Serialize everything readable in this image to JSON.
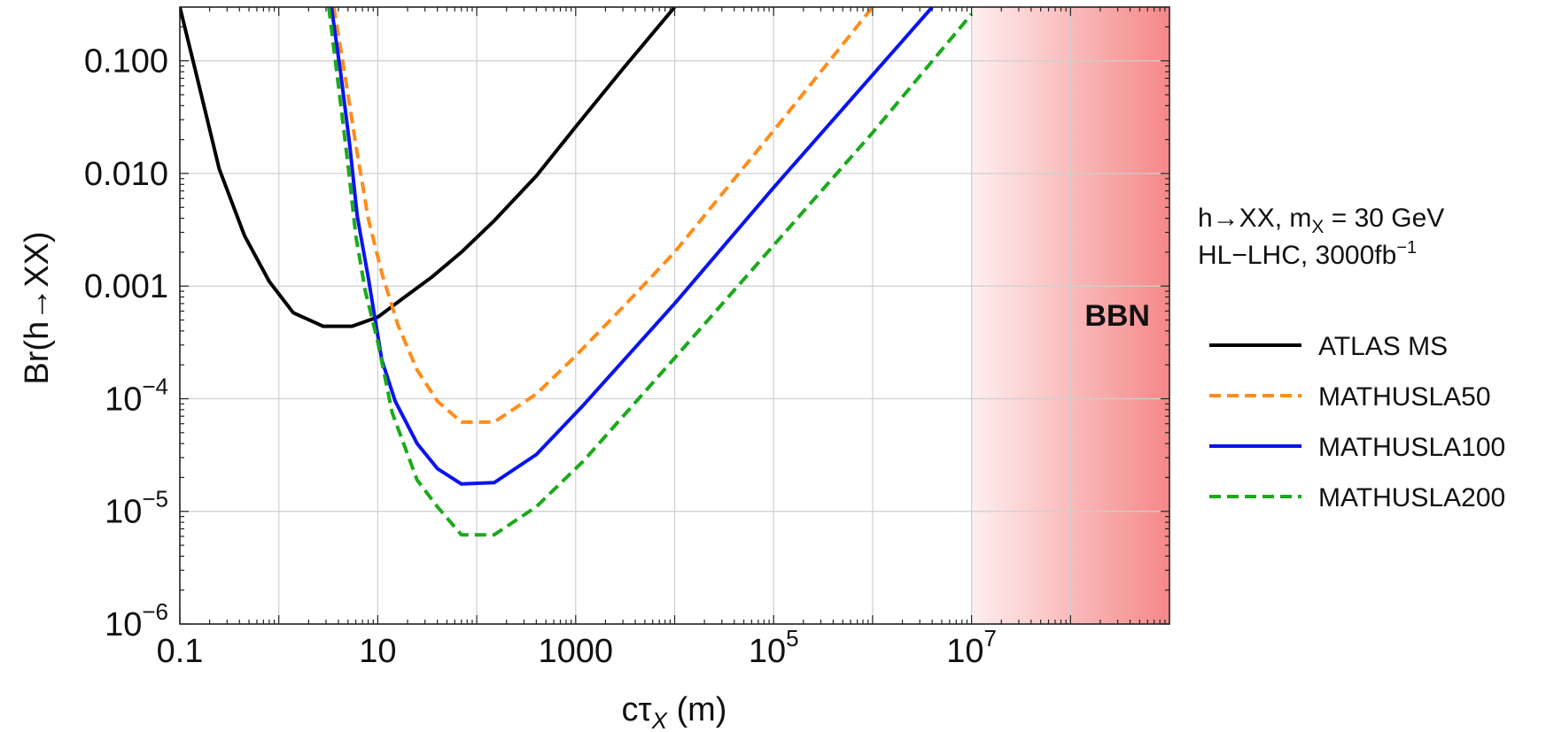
{
  "chart_data": {
    "type": "line",
    "title": "",
    "xlabel": "cτ",
    "xlabel_sub": "X",
    "xlabel_unit": " (m)",
    "ylabel": "Br(h→XX)",
    "x_scale": "log",
    "y_scale": "log",
    "xlim": [
      0.1,
      1000000000
    ],
    "ylim": [
      1e-06,
      0.3
    ],
    "grid": true,
    "legend_placement": "right",
    "x_ticks": [
      {
        "value": 0.1,
        "label": "0.1",
        "mantissa": "0.1",
        "exp": ""
      },
      {
        "value": 10,
        "label": "10",
        "mantissa": "10",
        "exp": ""
      },
      {
        "value": 1000,
        "label": "1000",
        "mantissa": "1000",
        "exp": ""
      },
      {
        "value": 100000,
        "label": "10^5",
        "mantissa": "10",
        "exp": "5"
      },
      {
        "value": 10000000,
        "label": "10^7",
        "mantissa": "10",
        "exp": "7"
      }
    ],
    "y_ticks": [
      {
        "value": 0.1,
        "label": "0.100",
        "mantissa": "0.100",
        "exp": ""
      },
      {
        "value": 0.01,
        "label": "0.010",
        "mantissa": "0.010",
        "exp": ""
      },
      {
        "value": 0.001,
        "label": "0.001",
        "mantissa": "0.001",
        "exp": ""
      },
      {
        "value": 0.0001,
        "label": "10^-4",
        "mantissa": "10",
        "exp": "−4"
      },
      {
        "value": 1e-05,
        "label": "10^-5",
        "mantissa": "10",
        "exp": "−5"
      },
      {
        "value": 1e-06,
        "label": "10^-6",
        "mantissa": "10",
        "exp": "−6"
      }
    ],
    "annotation": {
      "line1": "h→XX, m",
      "line1_sub": "X",
      "line1_tail": " = 30 GeV",
      "line2": "HL−LHC, 3000fb",
      "line2_sup": "−1"
    },
    "region": {
      "label": "BBN",
      "x_start": 10000000,
      "x_end": 1000000000,
      "color": "#f47a7a",
      "label_color": "#b00000"
    },
    "series": [
      {
        "name": "ATLAS MS",
        "color": "#000000",
        "dash": "solid",
        "points": [
          [
            0.1,
            0.3
          ],
          [
            0.15,
            0.07
          ],
          [
            0.25,
            0.011
          ],
          [
            0.45,
            0.0028
          ],
          [
            0.8,
            0.0011
          ],
          [
            1.4,
            0.00058
          ],
          [
            2.8,
            0.00044
          ],
          [
            5.5,
            0.00044
          ],
          [
            10,
            0.00053
          ],
          [
            18,
            0.00078
          ],
          [
            35,
            0.0012
          ],
          [
            70,
            0.002
          ],
          [
            150,
            0.0038
          ],
          [
            400,
            0.0095
          ],
          [
            1000,
            0.026
          ],
          [
            3000,
            0.085
          ],
          [
            10000,
            0.3
          ]
        ]
      },
      {
        "name": "MATHUSLA50",
        "color": "#ff8c1a",
        "dash": "dashed",
        "points": [
          [
            3.6,
            0.3
          ],
          [
            4.6,
            0.08
          ],
          [
            6,
            0.018
          ],
          [
            8,
            0.004
          ],
          [
            11,
            0.0013
          ],
          [
            16,
            0.00045
          ],
          [
            25,
            0.00018
          ],
          [
            40,
            9.5e-05
          ],
          [
            70,
            6.2e-05
          ],
          [
            150,
            6.2e-05
          ],
          [
            400,
            0.00011
          ],
          [
            1000,
            0.00024
          ],
          [
            3000,
            0.00065
          ],
          [
            10000,
            0.002
          ],
          [
            100000,
            0.024
          ],
          [
            1000000,
            0.3
          ]
        ]
      },
      {
        "name": "MATHUSLA100",
        "color": "#0a14f0",
        "dash": "solid",
        "points": [
          [
            3.4,
            0.3
          ],
          [
            4.2,
            0.08
          ],
          [
            5.2,
            0.018
          ],
          [
            6.2,
            0.0042
          ],
          [
            8,
            0.0012
          ],
          [
            11,
            0.00022
          ],
          [
            15,
            9.5e-05
          ],
          [
            25,
            4e-05
          ],
          [
            40,
            2.4e-05
          ],
          [
            70,
            1.75e-05
          ],
          [
            150,
            1.8e-05
          ],
          [
            400,
            3.2e-05
          ],
          [
            1200,
            8.8e-05
          ],
          [
            10000,
            0.0007
          ],
          [
            100000,
            0.0075
          ],
          [
            4000000,
            0.3
          ]
        ]
      },
      {
        "name": "MATHUSLA200",
        "color": "#1aaa1a",
        "dash": "dashed",
        "points": [
          [
            3.2,
            0.3
          ],
          [
            4,
            0.06
          ],
          [
            5,
            0.012
          ],
          [
            6,
            0.0028
          ],
          [
            7.5,
            0.0009
          ],
          [
            10,
            0.00032
          ],
          [
            14,
            7.5e-05
          ],
          [
            25,
            1.9e-05
          ],
          [
            40,
            1.1e-05
          ],
          [
            70,
            6.2e-06
          ],
          [
            150,
            6.2e-06
          ],
          [
            400,
            1.1e-05
          ],
          [
            1200,
            2.8e-05
          ],
          [
            10000,
            0.00023
          ],
          [
            100000,
            0.0023
          ],
          [
            1000000,
            0.023
          ],
          [
            10000000,
            0.26
          ]
        ]
      }
    ]
  }
}
